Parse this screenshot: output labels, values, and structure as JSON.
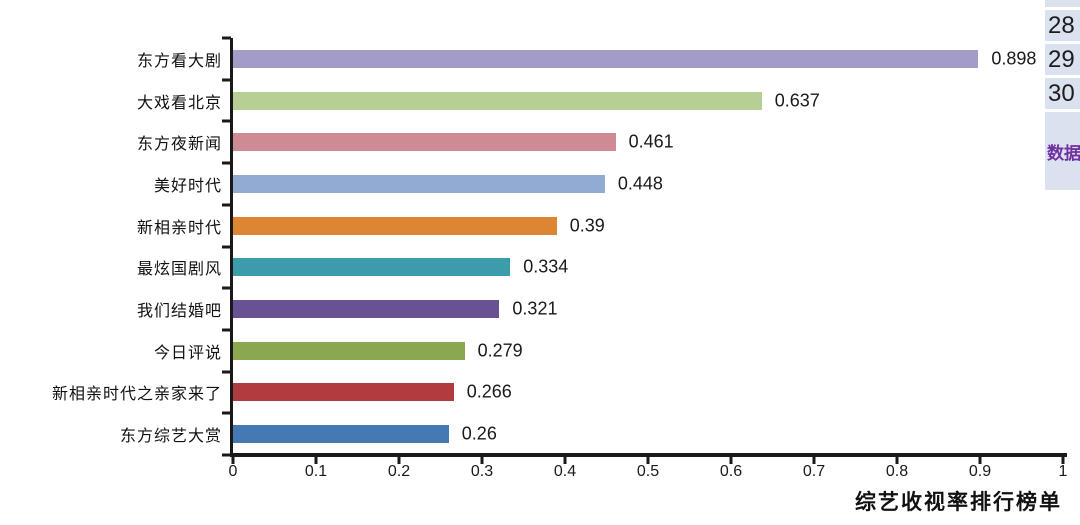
{
  "chart_data": {
    "type": "bar",
    "orientation": "horizontal",
    "title": "",
    "xlabel": "综艺收视率排行榜单",
    "ylabel": "",
    "categories": [
      "东方看大剧",
      "大戏看北京",
      "东方夜新闻",
      "美好时代",
      "新相亲时代",
      "最炫国剧风",
      "我们结婚吧",
      "今日评说",
      "新相亲时代之亲家来了",
      "东方综艺大赏"
    ],
    "values": [
      0.898,
      0.637,
      0.461,
      0.448,
      0.39,
      0.334,
      0.321,
      0.279,
      0.266,
      0.26
    ],
    "value_labels": [
      "0.898",
      "0.637",
      "0.461",
      "0.448",
      "0.39",
      "0.334",
      "0.321",
      "0.279",
      "0.266",
      "0.26"
    ],
    "bar_colors": [
      "#a49cc8",
      "#b7cf94",
      "#cf8b93",
      "#92abd3",
      "#dc8633",
      "#3b9dab",
      "#685294",
      "#8aa84f",
      "#b03c40",
      "#4579b2"
    ],
    "xlim": [
      0,
      1
    ],
    "x_ticks": [
      "0",
      "0.1",
      "0.2",
      "0.3",
      "0.4",
      "0.5",
      "0.6",
      "0.7",
      "0.8",
      "0.9",
      "1"
    ],
    "grid": false,
    "legend": "none",
    "axis_color": "#1a1a1a"
  },
  "spreadsheet_panel": {
    "background": "#dae2f0",
    "cells": [
      {
        "label": "",
        "kind": "row-partial",
        "text_color": "#1c1c1c"
      },
      {
        "label": "28",
        "kind": "row-number",
        "text_color": "#1c1c1c"
      },
      {
        "label": "29",
        "kind": "row-number",
        "text_color": "#1c1c1c"
      },
      {
        "label": "30",
        "kind": "row-number",
        "text_color": "#1c1c1c"
      },
      {
        "label": "数据",
        "kind": "label",
        "text_color": "#7030a0"
      }
    ]
  }
}
